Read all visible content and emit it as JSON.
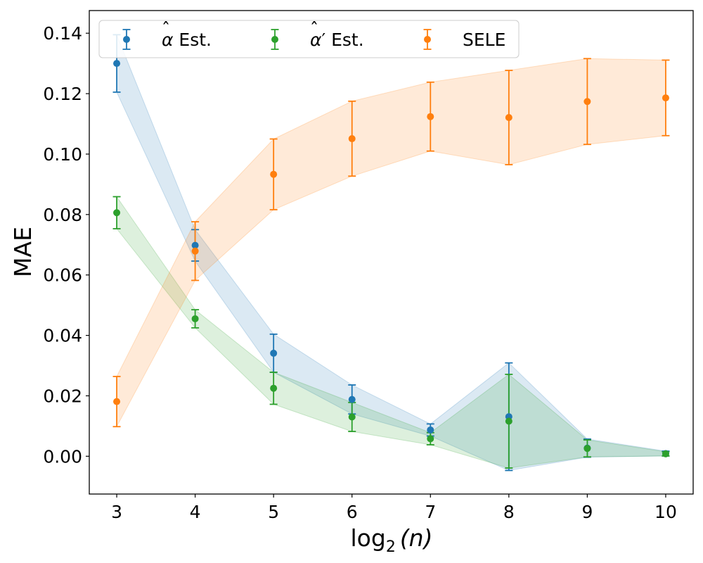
{
  "chart_data": {
    "type": "scatter",
    "title": "",
    "xlabel": "log2(n)",
    "xlabel_main": "log",
    "xlabel_sub": "2",
    "xlabel_rest": "(n)",
    "ylabel": "MAE",
    "xlim": [
      2.65,
      10.35
    ],
    "ylim": [
      -0.0125,
      0.1475
    ],
    "x_ticks": [
      3,
      4,
      5,
      6,
      7,
      8,
      9,
      10
    ],
    "x_tick_labels": [
      "3",
      "4",
      "5",
      "6",
      "7",
      "8",
      "9",
      "10"
    ],
    "y_ticks": [
      0.0,
      0.02,
      0.04,
      0.06,
      0.08,
      0.1,
      0.12,
      0.14
    ],
    "y_tick_labels": [
      "0.00",
      "0.02",
      "0.04",
      "0.06",
      "0.08",
      "0.10",
      "0.12",
      "0.14"
    ],
    "legend_position": "top-left",
    "series": [
      {
        "name": "α̂ Est.",
        "legend_base": "α",
        "legend_rest": " Est.",
        "legend_mark": "hat",
        "color": "#1f77b4",
        "x": [
          3,
          4,
          5,
          6,
          7,
          8,
          9,
          10
        ],
        "y": [
          0.13,
          0.0698,
          0.0341,
          0.0188,
          0.0087,
          0.0131,
          0.0027,
          0.0009
        ],
        "err": [
          0.0095,
          0.0052,
          0.0063,
          0.0048,
          0.002,
          0.0178,
          0.003,
          0.0008
        ]
      },
      {
        "name": "α̂′ Est.",
        "legend_base": "α",
        "legend_rest": "′ Est.",
        "legend_mark": "hat",
        "color": "#2ca02c",
        "x": [
          3,
          4,
          5,
          6,
          7,
          8,
          9,
          10
        ],
        "y": [
          0.0806,
          0.0455,
          0.0225,
          0.013,
          0.0058,
          0.0116,
          0.0026,
          0.0008
        ],
        "err": [
          0.0053,
          0.003,
          0.0053,
          0.0048,
          0.002,
          0.0155,
          0.0028,
          0.0007
        ]
      },
      {
        "name": "SELE",
        "legend_base": "SELE",
        "legend_rest": "",
        "legend_mark": "",
        "color": "#ff7f0e",
        "x": [
          3,
          4,
          5,
          6,
          7,
          8,
          9,
          10
        ],
        "y": [
          0.0181,
          0.0679,
          0.0933,
          0.1051,
          0.1124,
          0.1121,
          0.1174,
          0.1186
        ],
        "err": [
          0.0083,
          0.0097,
          0.0117,
          0.0124,
          0.0114,
          0.0156,
          0.0142,
          0.0125
        ]
      }
    ]
  }
}
